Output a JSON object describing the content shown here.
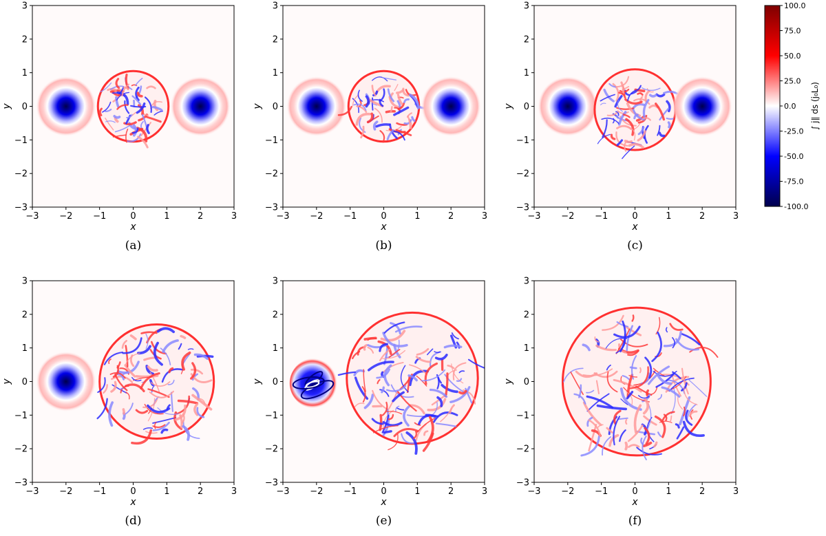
{
  "chart_data": {
    "type": "heatmap",
    "colorbar": {
      "label": "∫ j∥ ds (j₀L₀)",
      "range": [
        -100,
        100
      ],
      "ticks": [
        "100.0",
        "75.0",
        "50.0",
        "25.0",
        "0.0",
        "-25.0",
        "-50.0",
        "-75.0",
        "-100.0"
      ],
      "tick_values": [
        100,
        75,
        50,
        25,
        0,
        -25,
        -50,
        -75,
        -100
      ],
      "colormap": "seismic",
      "colors": {
        "min": "#00004c",
        "low": "#0000ff",
        "mid": "#ffffff",
        "high": "#ff0000",
        "max": "#7f0000"
      }
    },
    "panels": [
      {
        "caption": "(a)",
        "xlabel": "x",
        "ylabel": "y",
        "xlim": [
          -3,
          3
        ],
        "ylim": [
          -3,
          3
        ],
        "xticks": [
          "−3",
          "−2",
          "−1",
          "0",
          "1",
          "2",
          "3"
        ],
        "yticks": [
          "−3",
          "−2",
          "−1",
          "0",
          "1",
          "2",
          "3"
        ],
        "features": [
          {
            "kind": "flux-tube",
            "center": [
              -2,
              0
            ],
            "radius": 0.9
          },
          {
            "kind": "turbulent-region",
            "center": [
              0,
              0
            ],
            "radius": 1.05
          },
          {
            "kind": "flux-tube",
            "center": [
              2,
              0
            ],
            "radius": 0.9
          }
        ]
      },
      {
        "caption": "(b)",
        "xlabel": "x",
        "ylabel": "y",
        "xlim": [
          -3,
          3
        ],
        "ylim": [
          -3,
          3
        ],
        "xticks": [
          "−3",
          "−2",
          "−1",
          "0",
          "1",
          "2",
          "3"
        ],
        "yticks": [
          "−3",
          "−2",
          "−1",
          "0",
          "1",
          "2",
          "3"
        ],
        "features": [
          {
            "kind": "flux-tube",
            "center": [
              -2,
              0
            ],
            "radius": 0.9
          },
          {
            "kind": "turbulent-region",
            "center": [
              0,
              0
            ],
            "radius": 1.05
          },
          {
            "kind": "flux-tube",
            "center": [
              2,
              0
            ],
            "radius": 0.9
          }
        ]
      },
      {
        "caption": "(c)",
        "xlabel": "x",
        "ylabel": "y",
        "xlim": [
          -3,
          3
        ],
        "ylim": [
          -3,
          3
        ],
        "xticks": [
          "−3",
          "−2",
          "−1",
          "0",
          "1",
          "2",
          "3"
        ],
        "yticks": [
          "−3",
          "−2",
          "−1",
          "0",
          "1",
          "2",
          "3"
        ],
        "features": [
          {
            "kind": "flux-tube",
            "center": [
              -2,
              0
            ],
            "radius": 0.9
          },
          {
            "kind": "turbulent-region",
            "center": [
              0,
              -0.1
            ],
            "radius": 1.2
          },
          {
            "kind": "flux-tube",
            "center": [
              2,
              0
            ],
            "radius": 0.9
          }
        ]
      },
      {
        "caption": "(d)",
        "xlabel": "x",
        "ylabel": "y",
        "xlim": [
          -3,
          3
        ],
        "ylim": [
          -3,
          3
        ],
        "xticks": [
          "−3",
          "−2",
          "−1",
          "0",
          "1",
          "2",
          "3"
        ],
        "yticks": [
          "−3",
          "−2",
          "−1",
          "0",
          "1",
          "2",
          "3"
        ],
        "features": [
          {
            "kind": "flux-tube",
            "center": [
              -2,
              0
            ],
            "radius": 0.9
          },
          {
            "kind": "turbulent-region",
            "center": [
              0.7,
              0
            ],
            "radius": 1.7
          }
        ]
      },
      {
        "caption": "(e)",
        "xlabel": "x",
        "ylabel": "y",
        "xlim": [
          -3,
          3
        ],
        "ylim": [
          -3,
          3
        ],
        "xticks": [
          "−3",
          "−2",
          "−1",
          "0",
          "1",
          "2",
          "3"
        ],
        "yticks": [
          "−3",
          "−2",
          "−1",
          "0",
          "1",
          "2",
          "3"
        ],
        "features": [
          {
            "kind": "flux-tube-distorted",
            "center": [
              -2.05,
              -0.05
            ],
            "radius": 0.75
          },
          {
            "kind": "turbulent-region",
            "center": [
              0.85,
              0.1
            ],
            "radius": 1.95
          }
        ]
      },
      {
        "caption": "(f)",
        "xlabel": "x",
        "ylabel": "y",
        "xlim": [
          -3,
          3
        ],
        "ylim": [
          -3,
          3
        ],
        "xticks": [
          "−3",
          "−2",
          "−1",
          "0",
          "1",
          "2",
          "3"
        ],
        "yticks": [
          "−3",
          "−2",
          "−1",
          "0",
          "1",
          "2",
          "3"
        ],
        "features": [
          {
            "kind": "turbulent-region",
            "center": [
              0.05,
              0
            ],
            "radius": 2.2
          }
        ]
      }
    ]
  }
}
